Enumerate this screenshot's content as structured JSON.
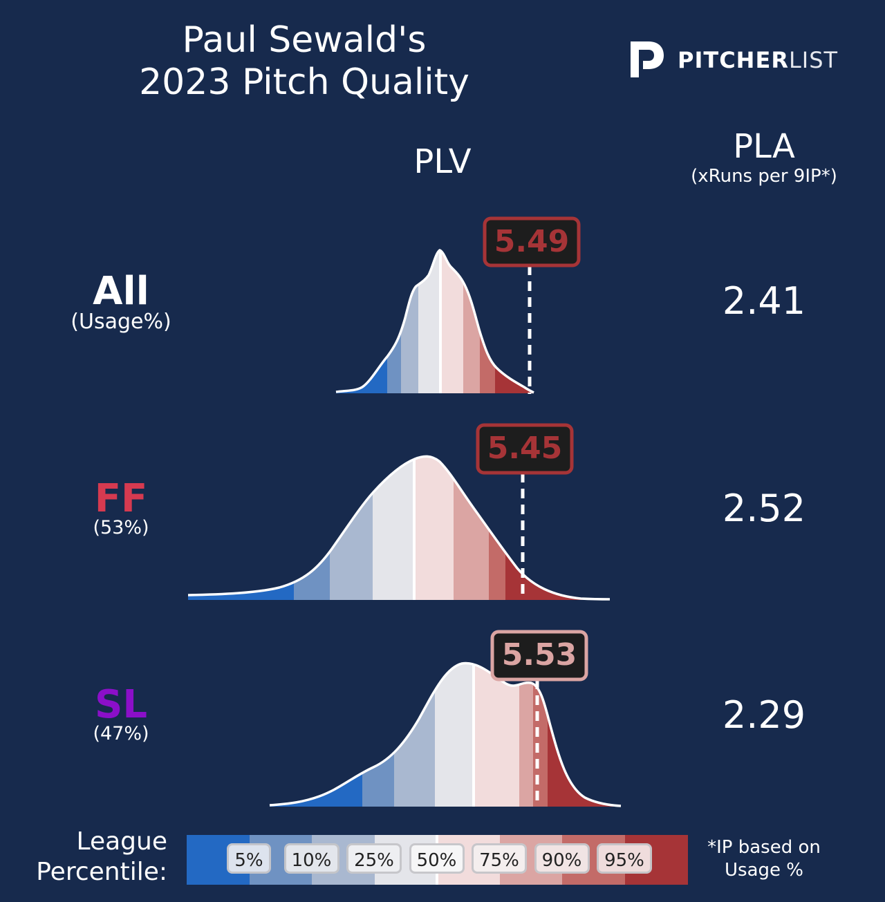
{
  "title_line1": "Paul Sewald's",
  "title_line2": "2023 Pitch Quality",
  "logo": {
    "bold": "PITCHER",
    "light": "LIST",
    "icon": "pitcherlist-p-icon"
  },
  "headers": {
    "plv": "PLV",
    "pla": "PLA",
    "pla_sub": "(xRuns per 9IP*)"
  },
  "chart_data": {
    "type": "area",
    "description_kind": "density distributions of PLV with percentile bands",
    "rows": [
      {
        "label": "All",
        "sublabel": "(Usage%)",
        "label_color": "#ffffff",
        "plv": 5.49,
        "plv_band": "95%+",
        "pla": 2.41
      },
      {
        "label": "FF",
        "sublabel": "(53%)",
        "label_color": "#d63a50",
        "plv": 5.45,
        "plv_band": "95%+",
        "pla": 2.52
      },
      {
        "label": "SL",
        "sublabel": "(47%)",
        "label_color": "#8b0fc9",
        "plv": 5.53,
        "plv_band": "90%",
        "pla": 2.29
      }
    ],
    "percentile_colors": [
      "#2369c3",
      "#6f92c2",
      "#a9b8d0",
      "#e4e5ea",
      "#f2dcdc",
      "#dba5a3",
      "#c36b68",
      "#a63437"
    ]
  },
  "plv_text": [
    "5.49",
    "5.45",
    "5.53"
  ],
  "pla_text": [
    "2.41",
    "2.52",
    "2.29"
  ],
  "legend": {
    "label_line1": "League",
    "label_line2": "Percentile:",
    "ticks": [
      "5%",
      "10%",
      "25%",
      "50%",
      "75%",
      "90%",
      "95%"
    ],
    "footnote_line1": "*IP based on",
    "footnote_line2": "Usage %"
  }
}
